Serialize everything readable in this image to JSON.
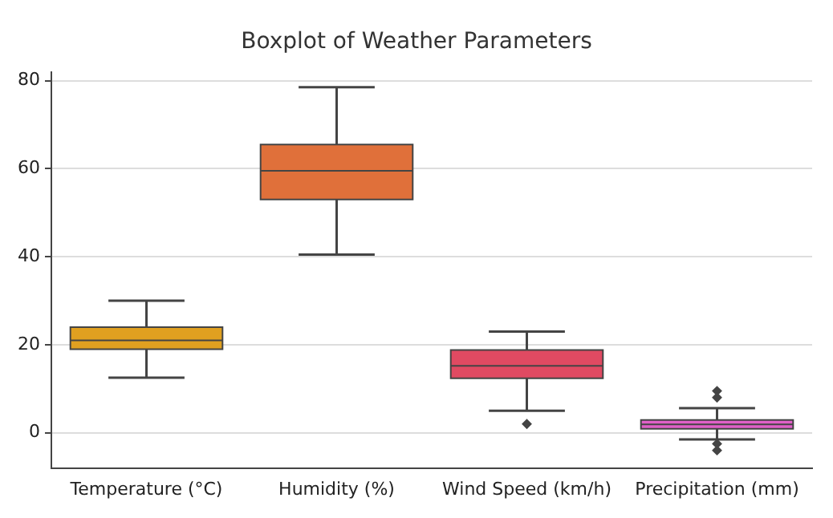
{
  "chart_data": {
    "type": "box",
    "title": "Boxplot of Weather Parameters",
    "categories": [
      "Temperature (°C)",
      "Humidity (%)",
      "Wind Speed (km/h)",
      "Precipitation (mm)"
    ],
    "colors": [
      "#e0a020",
      "#e0703a",
      "#e04a62",
      "#e060c8"
    ],
    "boxes": [
      {
        "low": 12.5,
        "q1": 19,
        "median": 21,
        "q3": 24,
        "high": 30
      },
      {
        "low": 40.5,
        "q1": 53,
        "median": 59.5,
        "q3": 65.5,
        "high": 78.5
      },
      {
        "low": 5,
        "q1": 12.4,
        "median": 15.2,
        "q3": 18.8,
        "high": 23,
        "outliers": [
          2
        ]
      },
      {
        "low": -1.5,
        "q1": 0.9,
        "median": 1.9,
        "q3": 2.9,
        "high": 5.6,
        "outliers": [
          9.5,
          8,
          -2.5,
          -4
        ]
      }
    ],
    "ylim": [
      -8,
      82
    ],
    "yticks": [
      0,
      20,
      40,
      60,
      80
    ],
    "grid": "y"
  }
}
